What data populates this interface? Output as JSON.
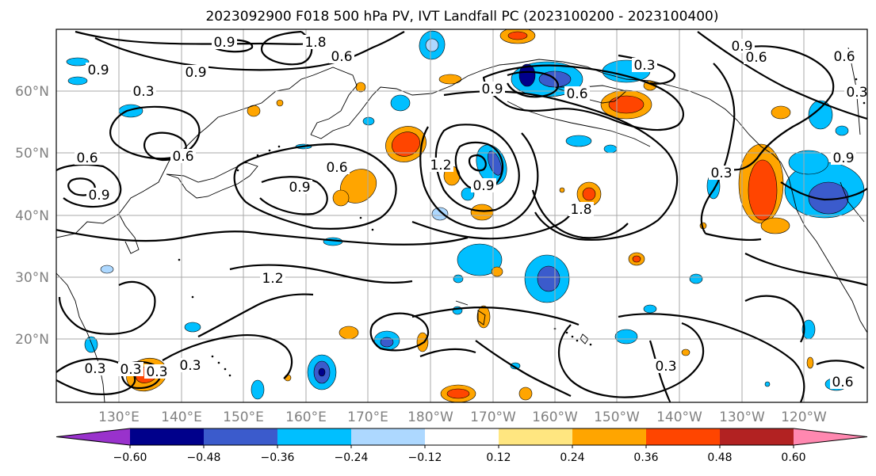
{
  "title": "2023092900 F018 500 hPa PV, IVT Landfall PC (2023100200 - 2023100400)",
  "lat_labels": [
    "60°N",
    "50°N",
    "40°N",
    "30°N",
    "20°N"
  ],
  "lon_labels": [
    "130°E",
    "140°E",
    "150°E",
    "160°E",
    "170°E",
    "180°W",
    "170°W",
    "160°W",
    "150°W",
    "140°W",
    "130°W",
    "120°W"
  ],
  "contour_labels": [
    "0.9",
    "1.8",
    "0.6",
    "0.9",
    "0.9",
    "0.3",
    "0.6",
    "0.6",
    "0.9",
    "0.6",
    "0.9",
    "0.9",
    "0.6",
    "0.9",
    "1.2",
    "1.8",
    "0.3",
    "0.3",
    "0.9",
    "0.6",
    "0.9",
    "0.3",
    "0.3",
    "0.6",
    "0.3",
    "0.3",
    "0.3",
    "0.3",
    "1.2",
    "0.6"
  ],
  "colorbar": {
    "colors": [
      "#9932cc",
      "#00008b",
      "#3b5bcc",
      "#00bfff",
      "#add8ff",
      "#ffffff",
      "#ffe680",
      "#ffa500",
      "#ff4500",
      "#b22222",
      "#ff88b0"
    ],
    "tick_labels": [
      "-0.60",
      "-0.48",
      "-0.36",
      "-0.24",
      "-0.12",
      "0.12",
      "0.24",
      "0.36",
      "0.48",
      "0.60"
    ]
  },
  "chart_data": {
    "type": "map",
    "title": "2023092900 F018 500 hPa PV, IVT Landfall PC (2023100200 - 2023100400)",
    "projection": "cylindrical",
    "lon_range": [
      "120°E",
      "115°W"
    ],
    "lat_range": [
      10,
      70
    ],
    "contour_field": "500 hPa PV",
    "contour_levels": [
      0.3,
      0.6,
      0.9,
      1.2,
      1.8
    ],
    "shaded_field": "IVT Landfall PC",
    "shading_levels": [
      -0.6,
      -0.48,
      -0.36,
      -0.24,
      -0.12,
      0.12,
      0.24,
      0.36,
      0.48,
      0.6
    ],
    "grid": true
  }
}
